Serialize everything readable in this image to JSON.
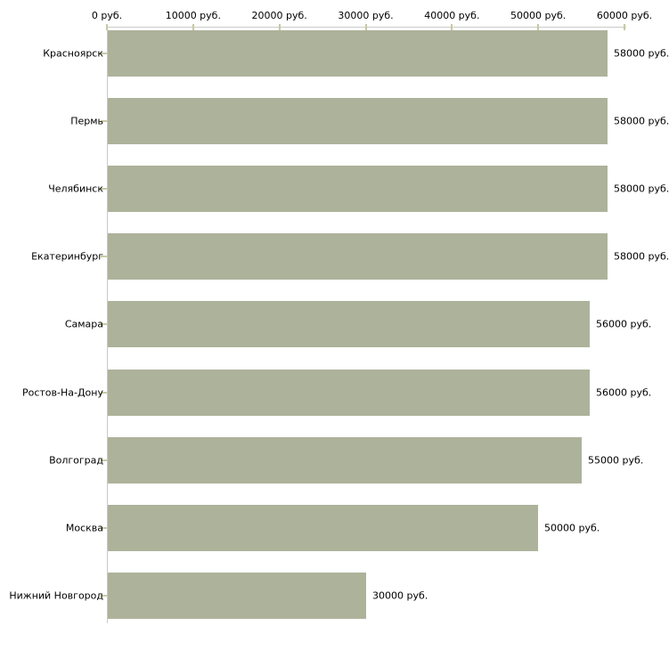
{
  "chart_data": {
    "type": "bar",
    "orientation": "horizontal",
    "title": "",
    "xlabel": "",
    "ylabel": "",
    "categories": [
      "Красноярск",
      "Пермь",
      "Челябинск",
      "Екатеринбург",
      "Самара",
      "Ростов-На-Дону",
      "Волгоград",
      "Москва",
      "Нижний Новгород"
    ],
    "values": [
      58000,
      58000,
      58000,
      58000,
      56000,
      56000,
      55000,
      50000,
      30000
    ],
    "value_labels": [
      "58000 руб.",
      "58000 руб.",
      "58000 руб.",
      "58000 руб.",
      "56000 руб.",
      "56000 руб.",
      "55000 руб.",
      "50000 руб.",
      "30000 руб."
    ],
    "x_tick_labels": [
      "0 руб.",
      "10000 руб.",
      "20000 руб.",
      "30000 руб.",
      "40000 руб.",
      "50000 руб.",
      "60000 руб."
    ],
    "x_tick_values": [
      0,
      10000,
      20000,
      30000,
      40000,
      50000,
      60000
    ],
    "xlim": [
      0,
      60000
    ],
    "unit": "руб.",
    "grid": false,
    "legend": false,
    "colors": {
      "bar_fill": "#adb29a",
      "axis_line": "#c9c9c9",
      "tick_mark": "#c9c9a3",
      "text": "#000000",
      "background": "#ffffff"
    }
  }
}
